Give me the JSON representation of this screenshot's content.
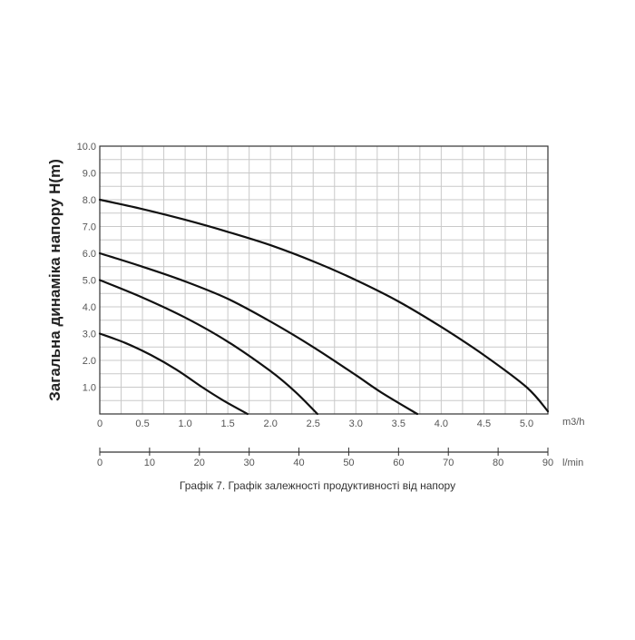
{
  "chart_data": {
    "type": "line",
    "ylabel": "Загальна динаміка напору H(m)",
    "xlabel_primary": "m3/h",
    "xlabel_secondary": "l/min",
    "caption": "Графік 7. Графік залежності продуктивності від напору",
    "xlim": [
      0,
      5.25
    ],
    "ylim": [
      0,
      10
    ],
    "y_ticks": [
      "1.0",
      "2.0",
      "3.0",
      "4.0",
      "5.0",
      "6.0",
      "7.0",
      "8.0",
      "9.0",
      "10.0"
    ],
    "x_ticks_primary": [
      {
        "value": 0,
        "label": "0"
      },
      {
        "value": 0.5,
        "label": "0.5"
      },
      {
        "value": 1.0,
        "label": "1.0"
      },
      {
        "value": 1.5,
        "label": "1.5"
      },
      {
        "value": 2.0,
        "label": "2.0"
      },
      {
        "value": 2.5,
        "label": "2.5"
      },
      {
        "value": 3.0,
        "label": "3.0"
      },
      {
        "value": 3.5,
        "label": "3.5"
      },
      {
        "value": 4.0,
        "label": "4.0"
      },
      {
        "value": 4.5,
        "label": "4.5"
      },
      {
        "value": 5.0,
        "label": "5.0"
      }
    ],
    "x_ticks_secondary": [
      "0",
      "10",
      "20",
      "30",
      "40",
      "50",
      "60",
      "70",
      "80",
      "90"
    ],
    "x_secondary_max": 90,
    "grid": true,
    "series": [
      {
        "x": [
          0,
          0.3,
          0.6,
          0.9,
          1.2,
          1.45,
          1.73
        ],
        "y": [
          3.0,
          2.65,
          2.2,
          1.65,
          1.0,
          0.5,
          0
        ]
      },
      {
        "x": [
          0,
          0.5,
          1.0,
          1.5,
          2.0,
          2.3,
          2.55
        ],
        "y": [
          5.0,
          4.35,
          3.6,
          2.7,
          1.6,
          0.8,
          0
        ]
      },
      {
        "x": [
          0,
          0.5,
          1.0,
          1.5,
          2.0,
          2.5,
          3.0,
          3.3,
          3.72
        ],
        "y": [
          6.0,
          5.5,
          4.95,
          4.3,
          3.45,
          2.5,
          1.45,
          0.8,
          0
        ]
      },
      {
        "x": [
          0,
          0.5,
          1.0,
          1.5,
          2.0,
          2.5,
          3.0,
          3.5,
          4.0,
          4.5,
          5.0,
          5.25
        ],
        "y": [
          8.0,
          7.65,
          7.25,
          6.8,
          6.3,
          5.7,
          5.0,
          4.2,
          3.25,
          2.2,
          1.0,
          0.1
        ]
      }
    ]
  }
}
